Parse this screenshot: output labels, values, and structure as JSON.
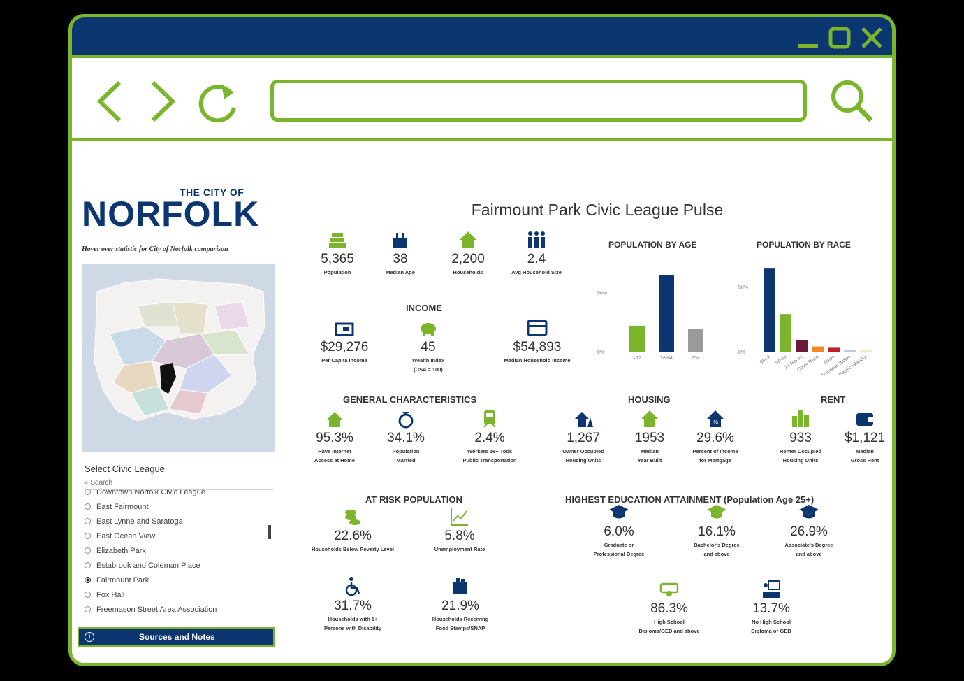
{
  "browser": {
    "window_controls": [
      "minimize-icon",
      "maximize-icon",
      "close-icon"
    ],
    "nav_icons": [
      "back-icon",
      "forward-icon",
      "reload-icon",
      "search-icon"
    ],
    "url": "",
    "colors": {
      "frame": "#7ab52c",
      "titlebar": "#0b3670"
    }
  },
  "left_panel": {
    "logo_small": "THE CITY OF",
    "logo_big": "NORFOLK",
    "hover_note": "Hover over statistic for City of Norfolk comparison",
    "select_label": "Select Civic League",
    "search_placeholder": "Search",
    "leagues": [
      {
        "label": "Downtown Norfolk Civic League",
        "selected": false
      },
      {
        "label": "East Fairmount",
        "selected": false
      },
      {
        "label": "East Lynne and Saratoga",
        "selected": false
      },
      {
        "label": "East Ocean View",
        "selected": false
      },
      {
        "label": "Elizabeth Park",
        "selected": false
      },
      {
        "label": "Estabrook and Coleman Place",
        "selected": false
      },
      {
        "label": "Fairmount Park",
        "selected": true
      },
      {
        "label": "Fox Hall",
        "selected": false
      },
      {
        "label": "Freemason Street Area Association",
        "selected": false
      }
    ],
    "sources_button": "Sources and Notes"
  },
  "dashboard": {
    "title": "Fairmount Park Civic League Pulse",
    "top_stats": [
      {
        "icon": "population-icon",
        "value": "5,365",
        "label": "Population"
      },
      {
        "icon": "cake-icon",
        "value": "38",
        "label": "Median Age"
      },
      {
        "icon": "house-icon",
        "value": "2,200",
        "label": "Households"
      },
      {
        "icon": "family-icon",
        "value": "2.4",
        "label": "Avg Household Size"
      }
    ],
    "income_title": "INCOME",
    "income": [
      {
        "icon": "wallet-icon",
        "value": "$29,276",
        "label": "Per Capita Income"
      },
      {
        "icon": "piggy-bank-icon",
        "value": "45",
        "label": "Wealth Index",
        "label2": "(USA = 100)"
      },
      {
        "icon": "payment-card-icon",
        "value": "$54,893",
        "label": "Median Household Income"
      }
    ],
    "general_title": "GENERAL CHARACTERISTICS",
    "general": [
      {
        "icon": "wifi-house-icon",
        "value": "95.3%",
        "label": "Have Internet",
        "label2": "Access at Home"
      },
      {
        "icon": "ring-icon",
        "value": "34.1%",
        "label": "Population",
        "label2": "Married"
      },
      {
        "icon": "train-icon",
        "value": "2.4%",
        "label": "Workers 16+ Took",
        "label2": "Public Transportation"
      }
    ],
    "housing_title": "HOUSING",
    "housing": [
      {
        "icon": "owner-house-icon",
        "value": "1,267",
        "label": "Owner Occupied",
        "label2": "Housing Units"
      },
      {
        "icon": "year-house-icon",
        "value": "1953",
        "label": "Median",
        "label2": "Year Built"
      },
      {
        "icon": "mortgage-house-icon",
        "value": "29.6%",
        "label": "Percent of Income",
        "label2": "for Mortgage"
      }
    ],
    "rent_title": "RENT",
    "rent": [
      {
        "icon": "buildings-icon",
        "value": "933",
        "label": "Renter Occupied",
        "label2": "Housing Units"
      },
      {
        "icon": "rent-wallet-icon",
        "value": "$1,121",
        "label": "Median",
        "label2": "Gross Rent"
      }
    ],
    "risk_title": "AT RISK POPULATION",
    "risk": [
      {
        "icon": "coins-icon",
        "value": "22.6%",
        "label": "Households Below Poverty Level"
      },
      {
        "icon": "line-chart-icon",
        "value": "5.8%",
        "label": "Unemployment Rate"
      },
      {
        "icon": "wheelchair-icon",
        "value": "31.7%",
        "label": "Households with 1+",
        "label2": "Persons with Disability"
      },
      {
        "icon": "grocery-icon",
        "value": "21.9%",
        "label": "Households Receiving",
        "label2": "Food Stamps/SNAP"
      }
    ],
    "education_title": "HIGHEST EDUCATION ATTAINMENT (Population Age 25+)",
    "education": [
      {
        "icon": "grad-cap-icon",
        "value": "6.0%",
        "label": "Graduate or",
        "label2": "Professional Degree"
      },
      {
        "icon": "grad-cap-green-icon",
        "value": "16.1%",
        "label": "Bachelor's Degree",
        "label2": "and above"
      },
      {
        "icon": "grad-cap-icon",
        "value": "26.9%",
        "label": "Associate's Degree",
        "label2": "and above"
      },
      {
        "icon": "diploma-icon",
        "value": "86.3%",
        "label": "High School",
        "label2": "Diploma/GED and above"
      },
      {
        "icon": "classroom-icon",
        "value": "13.7%",
        "label": "No High School",
        "label2": "Diploma or GED"
      }
    ]
  },
  "chart_data": [
    {
      "type": "bar",
      "title": "POPULATION BY AGE",
      "categories": [
        "<17",
        "18-64",
        "65+"
      ],
      "values": [
        22,
        65,
        19
      ],
      "colors": [
        "#7ab52c",
        "#0b3670",
        "#9a9a9a"
      ],
      "yticks": [
        "50%",
        "0%"
      ],
      "ylim": [
        0,
        70
      ]
    },
    {
      "type": "bar",
      "title": "POPULATION BY RACE",
      "categories": [
        "Black",
        "White",
        "2+ Races",
        "Other Race",
        "Asian",
        "American Indian",
        "Pacific Islander"
      ],
      "values": [
        64,
        29,
        9,
        4,
        3,
        1,
        1
      ],
      "colors": [
        "#0b3670",
        "#7ab52c",
        "#6b1a3c",
        "#f08a24",
        "#c0202a",
        "#b9c7e0",
        "#f3e6b8"
      ],
      "yticks": [
        "50%",
        "0%"
      ],
      "ylim": [
        0,
        70
      ]
    }
  ]
}
